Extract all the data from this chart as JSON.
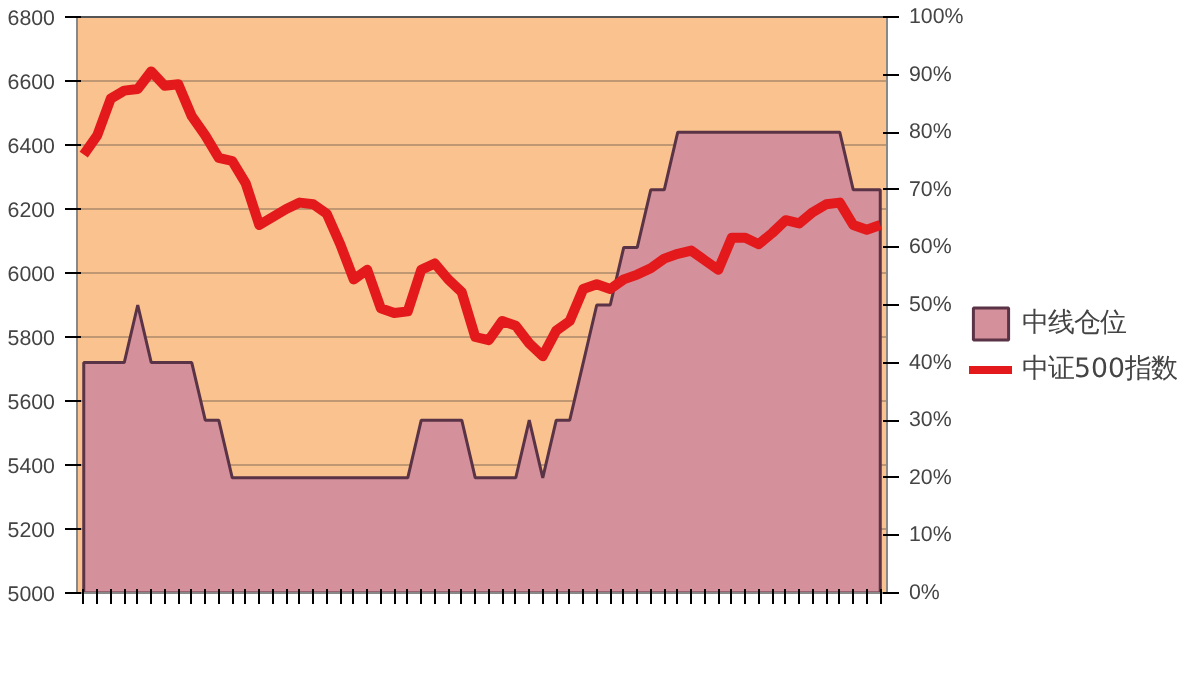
{
  "chart_data": {
    "type": "line",
    "categories": [
      null,
      null,
      null,
      null,
      null,
      null,
      null,
      null,
      null,
      null,
      null,
      null,
      null,
      null,
      null,
      null,
      null,
      null,
      null,
      null,
      null,
      null,
      null,
      null,
      null,
      null,
      null,
      null,
      null,
      null,
      null,
      null,
      null,
      null,
      null,
      null,
      null,
      null,
      null,
      null,
      null,
      null,
      null,
      null,
      null,
      null,
      null,
      null,
      null,
      null,
      null,
      null,
      null,
      null,
      null,
      null,
      null,
      null,
      null,
      null
    ],
    "series": [
      {
        "name": "中线仓位",
        "type": "area",
        "axis": "y2",
        "color": "#d4919b",
        "values": [
          40,
          40,
          40,
          40,
          50,
          40,
          40,
          40,
          40,
          30,
          30,
          20,
          20,
          20,
          20,
          20,
          20,
          20,
          20,
          20,
          20,
          20,
          20,
          20,
          20,
          30,
          30,
          30,
          30,
          20,
          20,
          20,
          20,
          30,
          20,
          30,
          30,
          40,
          50,
          50,
          60,
          60,
          70,
          70,
          80,
          80,
          80,
          80,
          80,
          80,
          80,
          80,
          80,
          80,
          80,
          80,
          80,
          70,
          70,
          70
        ]
      },
      {
        "name": "中证500指数",
        "color": "#e3191c",
        "values": [
          6370,
          6430,
          6545,
          6570,
          6575,
          6630,
          6585,
          6590,
          6490,
          6430,
          6360,
          6350,
          6280,
          6150,
          6175,
          6200,
          6220,
          6215,
          6185,
          6090,
          5980,
          6010,
          5890,
          5875,
          5880,
          6010,
          6030,
          5980,
          5940,
          5800,
          5790,
          5850,
          5835,
          5780,
          5740,
          5820,
          5850,
          5950,
          5965,
          5950,
          5980,
          5995,
          6015,
          6045,
          6060,
          6070,
          6040,
          6010,
          6110,
          6110,
          6090,
          6125,
          6165,
          6155,
          6190,
          6215,
          6220,
          6150,
          6135,
          6150
        ]
      }
    ],
    "ylim": [
      5000,
      6800
    ],
    "yticks": [
      5000,
      5200,
      5400,
      5600,
      5800,
      6000,
      6200,
      6400,
      6600,
      6800
    ],
    "y2lim": [
      0,
      100
    ],
    "y2ticks": [
      {
        "value": 0,
        "label": "0%"
      },
      {
        "value": 10,
        "label": "10%"
      },
      {
        "value": 20,
        "label": "20%"
      },
      {
        "value": 30,
        "label": "30%"
      },
      {
        "value": 40,
        "label": "40%"
      },
      {
        "value": 50,
        "label": "50%"
      },
      {
        "value": 60,
        "label": "60%"
      },
      {
        "value": 70,
        "label": "70%"
      },
      {
        "value": 80,
        "label": "80%"
      },
      {
        "value": 90,
        "label": "90%"
      },
      {
        "value": 100,
        "label": "100%"
      }
    ],
    "grid": "y",
    "legend": "right",
    "marker": "none",
    "line_style": "solid"
  }
}
